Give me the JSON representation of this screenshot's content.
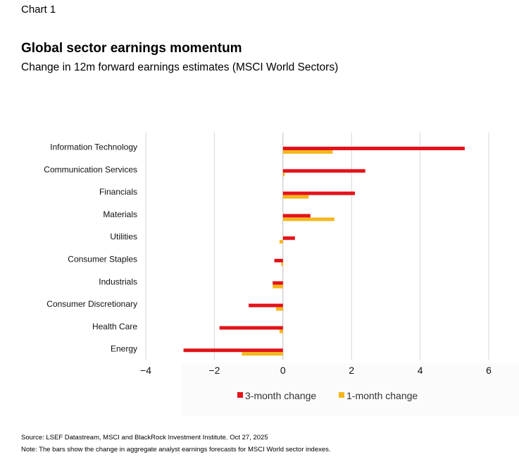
{
  "header": {
    "chart_label": "Chart 1",
    "title": "Global sector earnings momentum",
    "subtitle": "Change in 12m forward earnings estimates (MSCI World Sectors)"
  },
  "footer": {
    "source": "Source: LSEF Datastream, MSCI and BlackRock Investment Institute. Oct 27, 2025",
    "note": "Note: The bars show the change in aggregate analyst earnings forecasts for MSCI World sector indexes."
  },
  "chart_data": {
    "type": "bar",
    "orientation": "horizontal",
    "title": "Global sector earnings momentum",
    "subtitle": "Change in 12m forward earnings estimates (MSCI World Sectors)",
    "categories": [
      "Information Technology",
      "Communication Services",
      "Financials",
      "Materials",
      "Utilities",
      "Consumer Staples",
      "Industrials",
      "Consumer Discretionary",
      "Health Care",
      "Energy"
    ],
    "series": [
      {
        "name": "3-month change",
        "color": "#e3131b",
        "values": [
          5.3,
          2.4,
          2.1,
          0.8,
          0.35,
          -0.25,
          -0.3,
          -1.0,
          -1.85,
          -2.9
        ]
      },
      {
        "name": "1-month change",
        "color": "#f5b71d",
        "values": [
          1.45,
          0.05,
          0.75,
          1.5,
          -0.1,
          -0.05,
          -0.3,
          -0.2,
          -0.1,
          -1.2
        ]
      }
    ],
    "xlim": [
      -4,
      6
    ],
    "xticks": [
      -4,
      -2,
      0,
      2,
      4,
      6
    ],
    "grid": true,
    "legend_position": "bottom"
  }
}
